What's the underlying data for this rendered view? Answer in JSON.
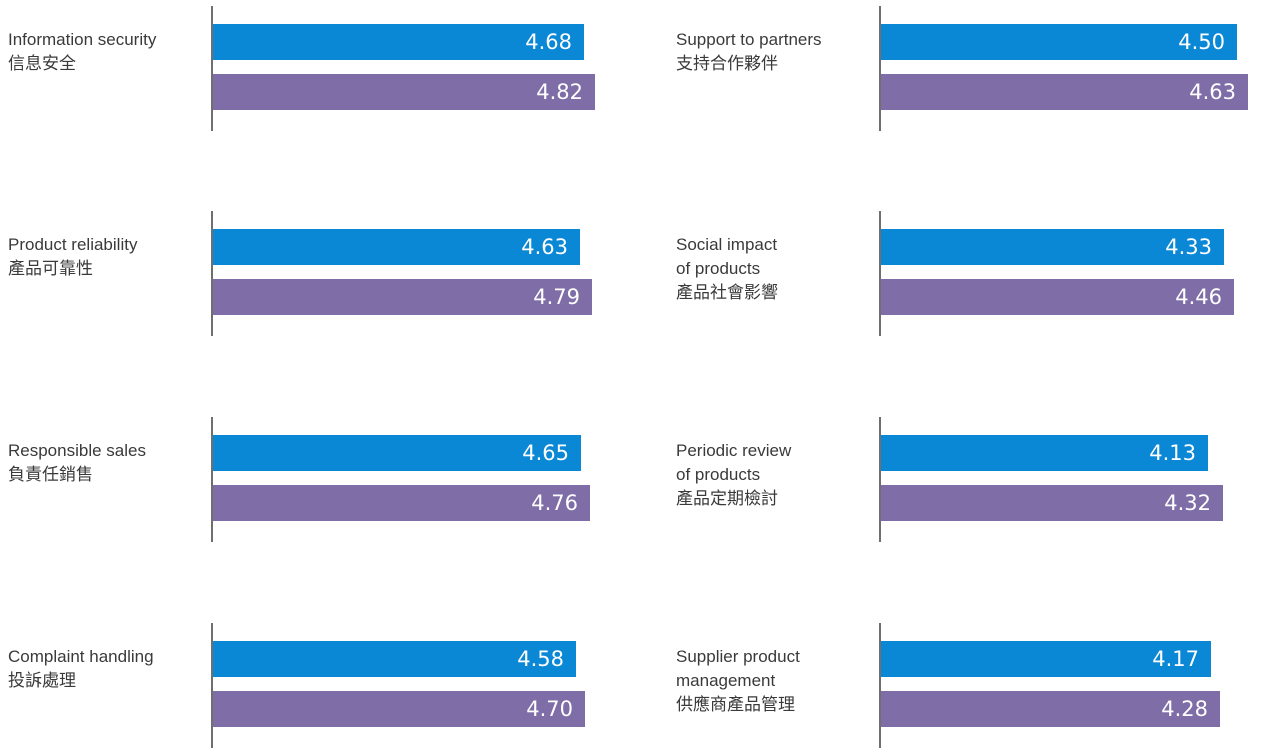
{
  "chart_data": {
    "type": "bar",
    "panels": [
      {
        "label_en": "Information security",
        "label_zh": "信息安全",
        "values": [
          4.68,
          4.82
        ]
      },
      {
        "label_en": "Support to partners",
        "label_zh": "支持合作夥伴",
        "values": [
          4.5,
          4.63
        ]
      },
      {
        "label_en": "Product reliability",
        "label_zh": "產品可靠性",
        "values": [
          4.63,
          4.79
        ]
      },
      {
        "label_en": [
          "Social impact",
          "of products"
        ],
        "label_zh": "產品社會影響",
        "values": [
          4.33,
          4.46
        ]
      },
      {
        "label_en": "Responsible sales",
        "label_zh": "負責任銷售",
        "values": [
          4.65,
          4.76
        ]
      },
      {
        "label_en": [
          "Periodic review",
          "of products"
        ],
        "label_zh": "產品定期檢討",
        "values": [
          4.13,
          4.32
        ]
      },
      {
        "label_en": "Complaint handling",
        "label_zh": "投訴處理",
        "values": [
          4.58,
          4.7
        ]
      },
      {
        "label_en": [
          "Supplier product",
          "management"
        ],
        "label_zh": "供應商產品管理",
        "values": [
          4.17,
          4.28
        ]
      }
    ],
    "series_colors": [
      "#0a87d5",
      "#7f6da8"
    ],
    "value_labels": [
      "4.68",
      "4.82",
      "4.50",
      "4.63",
      "4.63",
      "4.79",
      "4.33",
      "4.46",
      "4.65",
      "4.76",
      "4.13",
      "4.32",
      "4.58",
      "4.70",
      "4.17",
      "4.28"
    ]
  }
}
